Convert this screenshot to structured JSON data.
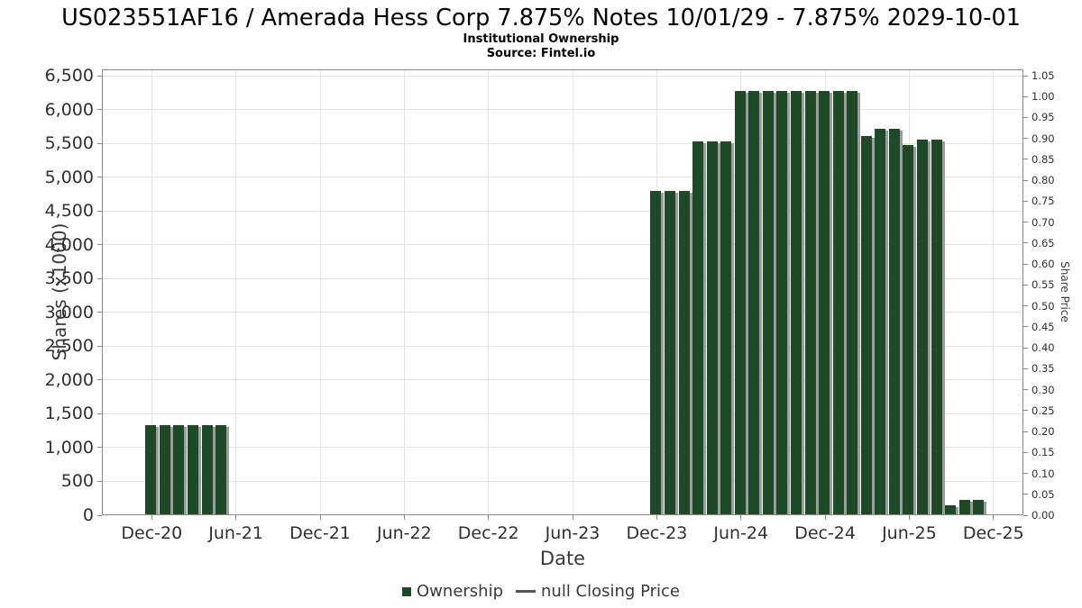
{
  "chart_data": {
    "type": "bar",
    "title": "US023551AF16 / Amerada Hess Corp 7.875% Notes 10/01/29 - 7.875% 2029-10-01",
    "subtitle": "Institutional Ownership",
    "source": "Source: Fintel.io",
    "grid": true,
    "legend_position": "bottom-center",
    "x_axis": {
      "label": "Date",
      "tick_labels": [
        "Dec-20",
        "Jun-21",
        "Dec-21",
        "Jun-22",
        "Dec-22",
        "Jun-23",
        "Dec-23",
        "Jun-24",
        "Dec-24",
        "Jun-25",
        "Dec-25"
      ]
    },
    "y_axis_left": {
      "label": "Shares (x1000)",
      "tick_labels": [
        "0",
        "500",
        "1,000",
        "1,500",
        "2,000",
        "2,500",
        "3,000",
        "3,500",
        "4,000",
        "4,500",
        "5,000",
        "5,500",
        "6,000",
        "6,500"
      ],
      "tick_step": 500,
      "range": [
        0,
        6590
      ]
    },
    "y_axis_right": {
      "label": "Share Price",
      "tick_labels": [
        "0.00",
        "0.05",
        "0.10",
        "0.15",
        "0.20",
        "0.25",
        "0.30",
        "0.35",
        "0.40",
        "0.45",
        "0.50",
        "0.55",
        "0.60",
        "0.65",
        "0.70",
        "0.75",
        "0.80",
        "0.85",
        "0.90",
        "0.95",
        "1.00",
        "1.05"
      ],
      "tick_step": 0.05,
      "range": [
        0,
        1.066
      ]
    },
    "legend": [
      {
        "label": "Ownership",
        "marker": "square"
      },
      {
        "label": "null Closing Price",
        "marker": "line"
      }
    ],
    "colors": {
      "bar": "#1E4A28",
      "bar_shadow": "#9C9C9C",
      "grid": "#E4E4E4",
      "axis": "#8A8A8A",
      "legend_line": "#555555",
      "text": "#303030"
    },
    "series": [
      {
        "name": "Ownership",
        "unit": "shares x1000",
        "points": [
          {
            "month": "Dec-20",
            "month_index": 0,
            "value": 1330
          },
          {
            "month": "Jan-21",
            "month_index": 1,
            "value": 1330
          },
          {
            "month": "Feb-21",
            "month_index": 2,
            "value": 1330
          },
          {
            "month": "Mar-21",
            "month_index": 3,
            "value": 1330
          },
          {
            "month": "Apr-21",
            "month_index": 4,
            "value": 1330
          },
          {
            "month": "May-21",
            "month_index": 5,
            "value": 1330
          },
          {
            "month": "Dec-23",
            "month_index": 36,
            "value": 4790
          },
          {
            "month": "Jan-24",
            "month_index": 37,
            "value": 4790
          },
          {
            "month": "Feb-24",
            "month_index": 38,
            "value": 4790
          },
          {
            "month": "Mar-24",
            "month_index": 39,
            "value": 5530
          },
          {
            "month": "Apr-24",
            "month_index": 40,
            "value": 5530
          },
          {
            "month": "May-24",
            "month_index": 41,
            "value": 5530
          },
          {
            "month": "Jun-24",
            "month_index": 42,
            "value": 6280
          },
          {
            "month": "Jul-24",
            "month_index": 43,
            "value": 6280
          },
          {
            "month": "Aug-24",
            "month_index": 44,
            "value": 6280
          },
          {
            "month": "Sep-24",
            "month_index": 45,
            "value": 6280
          },
          {
            "month": "Oct-24",
            "month_index": 46,
            "value": 6280
          },
          {
            "month": "Nov-24",
            "month_index": 47,
            "value": 6280
          },
          {
            "month": "Dec-24",
            "month_index": 48,
            "value": 6280
          },
          {
            "month": "Jan-25",
            "month_index": 49,
            "value": 6280
          },
          {
            "month": "Feb-25",
            "month_index": 50,
            "value": 6280
          },
          {
            "month": "Mar-25",
            "month_index": 51,
            "value": 5610
          },
          {
            "month": "Apr-25",
            "month_index": 52,
            "value": 5710
          },
          {
            "month": "May-25",
            "month_index": 53,
            "value": 5710
          },
          {
            "month": "Jun-25",
            "month_index": 54,
            "value": 5480
          },
          {
            "month": "Jul-25",
            "month_index": 55,
            "value": 5550
          },
          {
            "month": "Aug-25",
            "month_index": 56,
            "value": 5550
          },
          {
            "month": "Sep-25",
            "month_index": 57,
            "value": 150
          },
          {
            "month": "Oct-25",
            "month_index": 58,
            "value": 230
          },
          {
            "month": "Nov-25",
            "month_index": 59,
            "value": 230
          }
        ]
      }
    ]
  }
}
